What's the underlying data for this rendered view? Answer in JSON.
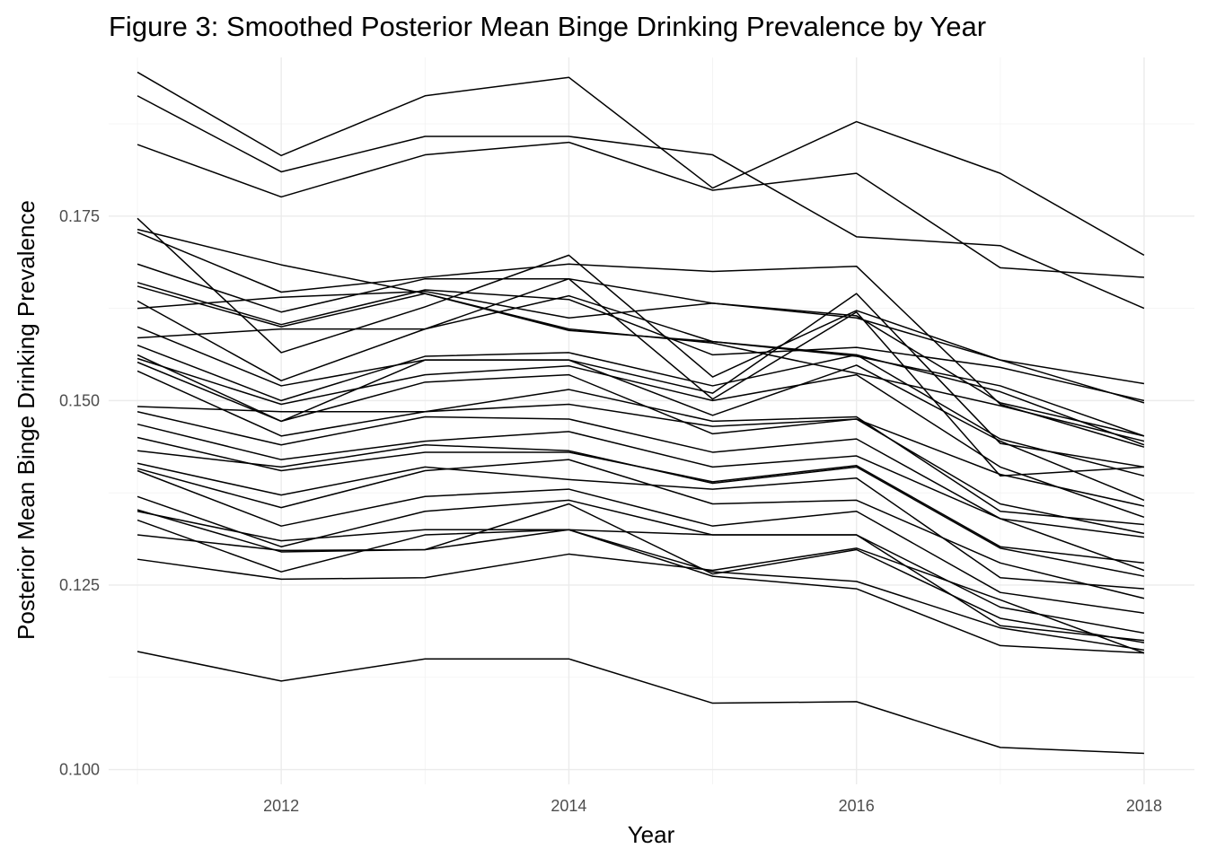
{
  "chart_data": {
    "type": "line",
    "title": "Figure 3: Smoothed Posterior Mean Binge Drinking Prevalence by Year",
    "xlabel": "Year",
    "ylabel": "Posterior Mean Binge Drinking Prevalence",
    "xlim": [
      2010.8,
      2018.35
    ],
    "ylim": [
      0.098,
      0.1965
    ],
    "x_ticks": [
      2012,
      2014,
      2016,
      2018
    ],
    "x_tick_labels": [
      "2012",
      "2014",
      "2016",
      "2018"
    ],
    "y_ticks": [
      0.1,
      0.125,
      0.15,
      0.175
    ],
    "y_tick_labels": [
      "0.100",
      "0.125",
      "0.150",
      "0.175"
    ],
    "grid": true,
    "legend": "none",
    "line_color": "#000000",
    "x": [
      2011,
      2012,
      2013,
      2014,
      2015,
      2016,
      2017,
      2018
    ],
    "series": [
      {
        "values": [
          0.1945,
          0.1832,
          0.1913,
          0.1938,
          0.1788,
          0.1878,
          0.1808,
          0.1697
        ]
      },
      {
        "values": [
          0.1913,
          0.181,
          0.1858,
          0.1858,
          0.1833,
          0.1722,
          0.171,
          0.1625
        ]
      },
      {
        "values": [
          0.1847,
          0.1776,
          0.1833,
          0.185,
          0.1785,
          0.1808,
          0.168,
          0.1667
        ]
      },
      {
        "values": [
          0.1747,
          0.1565,
          0.1627,
          0.1697,
          0.1532,
          0.1622,
          0.1555,
          0.1497
        ]
      },
      {
        "values": [
          0.1732,
          0.1684,
          0.1645,
          0.1597,
          0.1578,
          0.1537,
          0.1493,
          0.1445
        ]
      },
      {
        "values": [
          0.1728,
          0.1647,
          0.1667,
          0.1685,
          0.1675,
          0.1682,
          0.1495,
          0.1437
        ]
      },
      {
        "values": [
          0.1685,
          0.162,
          0.1665,
          0.1665,
          0.1632,
          0.1612,
          0.1555,
          0.1523
        ]
      },
      {
        "values": [
          0.166,
          0.1603,
          0.165,
          0.1637,
          0.1562,
          0.1572,
          0.1545,
          0.15
        ]
      },
      {
        "values": [
          0.1655,
          0.16,
          0.1645,
          0.1595,
          0.158,
          0.156,
          0.152,
          0.1452
        ]
      },
      {
        "values": [
          0.1635,
          0.1527,
          0.1597,
          0.1642,
          0.158,
          0.1562,
          0.1512,
          0.144
        ]
      },
      {
        "values": [
          0.1625,
          0.164,
          0.1648,
          0.1612,
          0.1632,
          0.1615,
          0.1497,
          0.1452
        ]
      },
      {
        "values": [
          0.16,
          0.152,
          0.1555,
          0.1555,
          0.151,
          0.1645,
          0.1442,
          0.141
        ]
      },
      {
        "values": [
          0.1585,
          0.1597,
          0.1597,
          0.1665,
          0.1502,
          0.162,
          0.1398,
          0.141
        ]
      },
      {
        "values": [
          0.1575,
          0.15,
          0.156,
          0.1565,
          0.152,
          0.1562,
          0.1448,
          0.1398
        ]
      },
      {
        "values": [
          0.1562,
          0.1472,
          0.1555,
          0.1555,
          0.148,
          0.1548,
          0.1445,
          0.1365
        ]
      },
      {
        "values": [
          0.1557,
          0.1495,
          0.1535,
          0.1547,
          0.15,
          0.1535,
          0.141,
          0.1342
        ]
      },
      {
        "values": [
          0.1552,
          0.1472,
          0.1525,
          0.1535,
          0.1455,
          0.1475,
          0.14,
          0.1357
        ]
      },
      {
        "values": [
          0.154,
          0.1452,
          0.1485,
          0.1515,
          0.1472,
          0.1478,
          0.135,
          0.1332
        ]
      },
      {
        "values": [
          0.1492,
          0.1485,
          0.1485,
          0.1495,
          0.1465,
          0.1475,
          0.136,
          0.132
        ]
      },
      {
        "values": [
          0.1485,
          0.144,
          0.1478,
          0.1475,
          0.143,
          0.1448,
          0.134,
          0.1315
        ]
      },
      {
        "values": [
          0.1468,
          0.142,
          0.1445,
          0.1458,
          0.141,
          0.1425,
          0.134,
          0.127
        ]
      },
      {
        "values": [
          0.145,
          0.1405,
          0.143,
          0.143,
          0.139,
          0.1412,
          0.1302,
          0.128
        ]
      },
      {
        "values": [
          0.1432,
          0.141,
          0.144,
          0.1432,
          0.1388,
          0.141,
          0.13,
          0.1262
        ]
      },
      {
        "values": [
          0.1415,
          0.1372,
          0.141,
          0.1393,
          0.138,
          0.1395,
          0.126,
          0.1245
        ]
      },
      {
        "values": [
          0.1408,
          0.1355,
          0.1405,
          0.142,
          0.136,
          0.1365,
          0.128,
          0.1232
        ]
      },
      {
        "values": [
          0.1405,
          0.133,
          0.137,
          0.138,
          0.133,
          0.135,
          0.124,
          0.1212
        ]
      },
      {
        "values": [
          0.137,
          0.1302,
          0.135,
          0.1365,
          0.1318,
          0.1318,
          0.122,
          0.1185
        ]
      },
      {
        "values": [
          0.1352,
          0.1295,
          0.1298,
          0.136,
          0.1265,
          0.1298,
          0.1205,
          0.1172
        ]
      },
      {
        "values": [
          0.135,
          0.131,
          0.1325,
          0.1325,
          0.1318,
          0.1318,
          0.1195,
          0.1175
        ]
      },
      {
        "values": [
          0.1338,
          0.1268,
          0.1318,
          0.1325,
          0.1268,
          0.1255,
          0.1192,
          0.1162
        ]
      },
      {
        "values": [
          0.1318,
          0.1297,
          0.1298,
          0.1325,
          0.1262,
          0.1245,
          0.1168,
          0.1158
        ]
      },
      {
        "values": [
          0.1285,
          0.1258,
          0.126,
          0.1292,
          0.127,
          0.13,
          0.123,
          0.1158
        ]
      },
      {
        "values": [
          0.116,
          0.112,
          0.115,
          0.115,
          0.109,
          0.1092,
          0.103,
          0.1022
        ]
      }
    ]
  }
}
